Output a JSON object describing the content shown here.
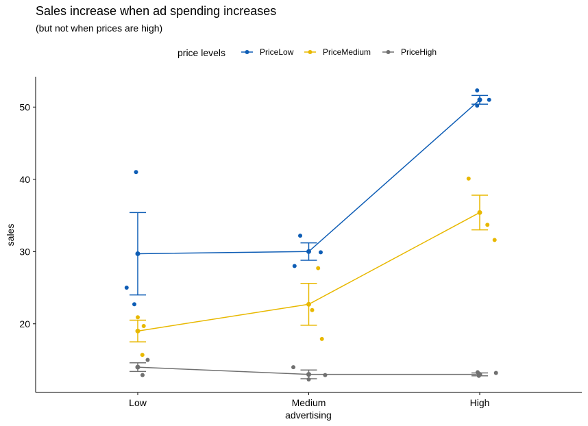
{
  "chart_data": {
    "type": "line",
    "title": "Sales increase when ad spending increases",
    "subtitle": "(but not when prices are high)",
    "xlabel": "advertising",
    "ylabel": "sales",
    "categories": [
      "Low",
      "Medium",
      "High"
    ],
    "ylim": [
      10.5,
      54.2
    ],
    "yticks": [
      20,
      30,
      40,
      50
    ],
    "legend": {
      "title": "price levels",
      "position": "top"
    },
    "grid": false,
    "series": [
      {
        "name": "PriceLow",
        "color": "#0e5db5",
        "means": [
          29.7,
          30.0,
          51.0
        ],
        "error": [
          [
            24.0,
            35.4
          ],
          [
            28.8,
            31.2
          ],
          [
            50.4,
            51.6
          ]
        ],
        "points": [
          [
            -0.065,
            25.0
          ],
          [
            -0.02,
            22.7
          ],
          [
            -0.01,
            41.0
          ],
          [
            -0.083,
            28.0
          ],
          [
            -0.05,
            32.2
          ],
          [
            0.07,
            29.9
          ],
          [
            -0.015,
            52.3
          ],
          [
            -0.015,
            50.2
          ],
          [
            0.055,
            51.0
          ]
        ]
      },
      {
        "name": "PriceMedium",
        "color": "#e8b800",
        "means": [
          19.0,
          22.7,
          35.4
        ],
        "error": [
          [
            17.5,
            20.5
          ],
          [
            19.8,
            25.6
          ],
          [
            33.0,
            37.8
          ]
        ],
        "points": [
          [
            0.0,
            20.9
          ],
          [
            0.035,
            19.7
          ],
          [
            0.027,
            15.7
          ],
          [
            0.055,
            27.7
          ],
          [
            0.02,
            21.9
          ],
          [
            0.077,
            17.9
          ],
          [
            -0.065,
            40.1
          ],
          [
            0.045,
            33.7
          ],
          [
            0.087,
            31.6
          ]
        ]
      },
      {
        "name": "PriceHigh",
        "color": "#707070",
        "means": [
          14.0,
          13.0,
          13.0
        ],
        "error": [
          [
            13.4,
            14.6
          ],
          [
            12.4,
            13.6
          ],
          [
            12.8,
            13.2
          ]
        ],
        "points": [
          [
            0.058,
            15.0
          ],
          [
            0.028,
            12.9
          ],
          [
            0.0,
            14.0
          ],
          [
            -0.09,
            14.0
          ],
          [
            0.0,
            12.3
          ],
          [
            0.096,
            12.9
          ],
          [
            -0.012,
            13.3
          ],
          [
            -0.005,
            12.8
          ],
          [
            0.095,
            13.2
          ]
        ]
      }
    ]
  }
}
